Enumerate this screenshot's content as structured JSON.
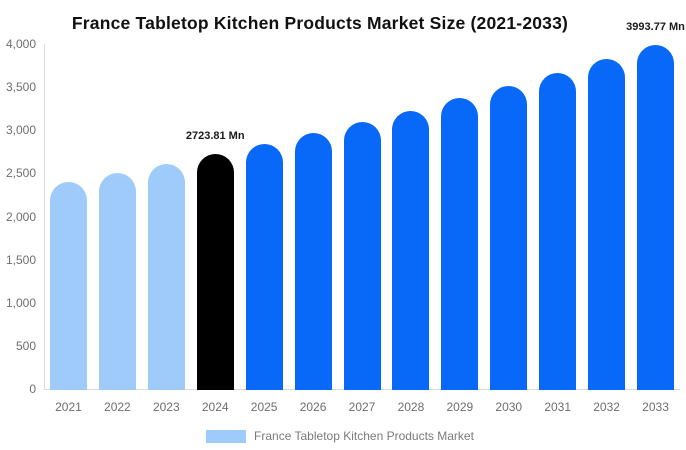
{
  "chart_data": {
    "type": "bar",
    "title": "France Tabletop Kitchen Products Market Size (2021-2033)",
    "categories": [
      "2021",
      "2022",
      "2023",
      "2024",
      "2025",
      "2026",
      "2027",
      "2028",
      "2029",
      "2030",
      "2031",
      "2032",
      "2033"
    ],
    "values": [
      2398.4,
      2502.5,
      2610.3,
      2723.81,
      2842.1,
      2965.6,
      3094.4,
      3228.7,
      3369.0,
      3515.3,
      3668.0,
      3827.3,
      3993.77
    ],
    "unit": "Mn",
    "ylim": [
      0,
      4000
    ],
    "y_ticks": [
      "0",
      "500",
      "1,000",
      "1,500",
      "2,000",
      "2,500",
      "3,000",
      "3,500",
      "4,000"
    ],
    "y_tick_values": [
      0,
      500,
      1000,
      1500,
      2000,
      2500,
      3000,
      3500,
      4000
    ],
    "bar_colors": [
      "#9ECBFA",
      "#9ECBFA",
      "#9ECBFA",
      "#000000",
      "#0868F7",
      "#0868F7",
      "#0868F7",
      "#0868F7",
      "#0868F7",
      "#0868F7",
      "#0868F7",
      "#0868F7",
      "#0868F7"
    ],
    "point_labels": [
      {
        "index": 3,
        "text": "2723.81 Mn"
      },
      {
        "index": 12,
        "text": "3993.77 Mn"
      }
    ],
    "grid": false,
    "legend_position": "bottom"
  },
  "legend": {
    "label": "France Tabletop Kitchen Products Market",
    "swatch_color": "#9ECBFA"
  },
  "colors": {
    "light_blue": "#9ECBFA",
    "highlight_black": "#000000",
    "blue": "#0868F7",
    "axis_text": "#6E6E6E",
    "legend_text": "#7A7A7A",
    "axis_line": "#DBDBDB",
    "label_text": "#1A1A1A"
  }
}
